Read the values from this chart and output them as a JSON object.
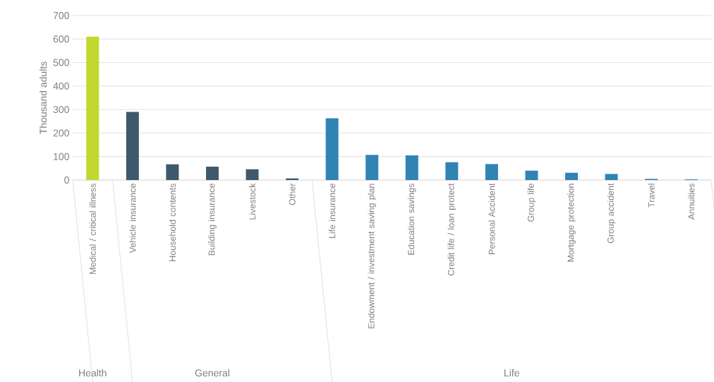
{
  "chart_data": {
    "type": "bar",
    "ylabel": "Thousand adults",
    "categories": [
      "Medical / critical illness",
      "Vehicle insurance",
      "Household contents",
      "Building insurance",
      "Livestock",
      "Other",
      "Life insurance",
      "Endowment / investment saving plan",
      "Education savings",
      "Credit life / loan protect",
      "Personal Accident",
      "Group life",
      "Mortgage protection",
      "Group accident",
      "Travel",
      "Annuities"
    ],
    "values": [
      610,
      290,
      67,
      57,
      46,
      7,
      263,
      107,
      105,
      76,
      68,
      40,
      31,
      26,
      5,
      3
    ],
    "colors": [
      "#c2d82e",
      "#3e596c",
      "#3e596c",
      "#3e596c",
      "#3e596c",
      "#3e596c",
      "#3183b4",
      "#3183b4",
      "#3183b4",
      "#3183b4",
      "#3183b4",
      "#3183b4",
      "#3183b4",
      "#3183b4",
      "#3183b4",
      "#3183b4"
    ],
    "ylim": [
      0,
      700
    ],
    "yticks": [
      0,
      100,
      200,
      300,
      400,
      500,
      600,
      700
    ],
    "grid": "y",
    "annotations": [
      "Health",
      "General",
      "Life"
    ]
  }
}
